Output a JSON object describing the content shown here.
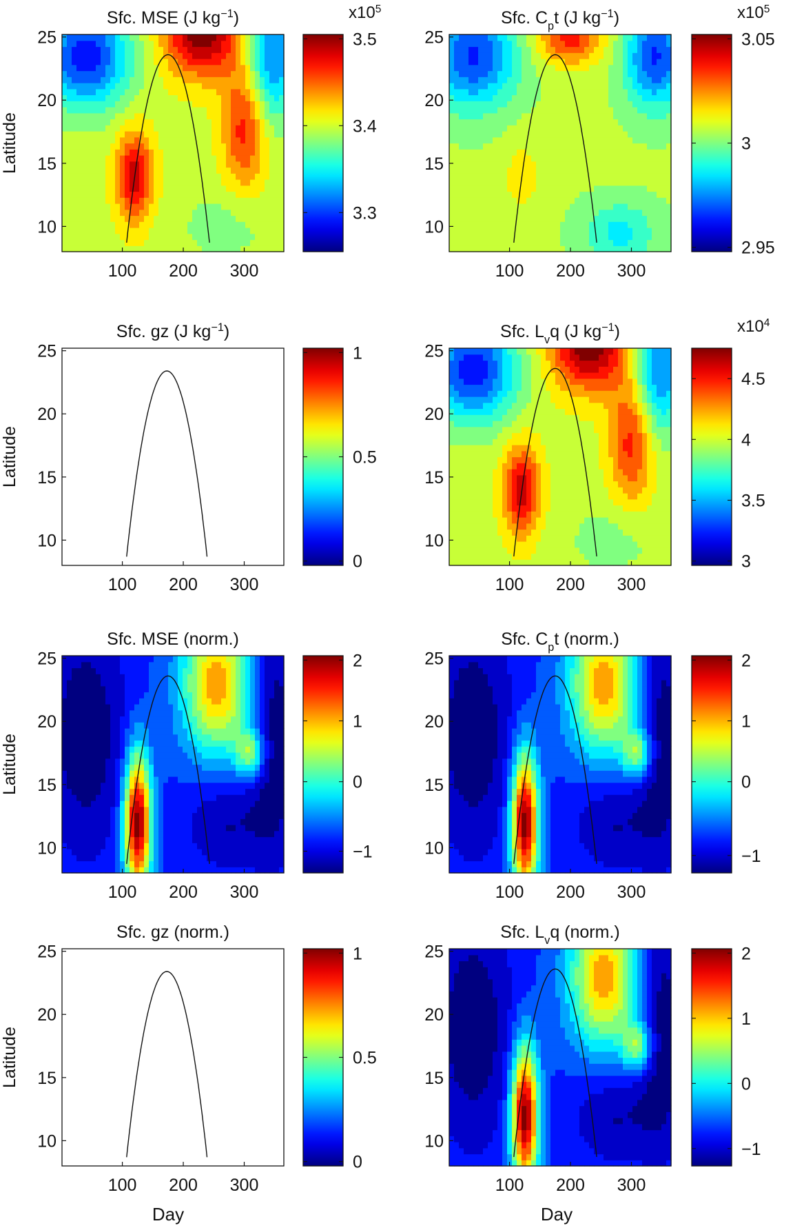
{
  "figure": {
    "xlabel_left": "Day",
    "xlabel_right": "Day"
  },
  "colors": {
    "frame": "#111111",
    "curve": "#111111"
  },
  "colormap_name": "jet",
  "chart_data": [
    {
      "id": "mse",
      "type": "heatmap",
      "title_parts": [
        [
          "Sfc. MSE (J kg",
          ""
        ],
        [
          "−1",
          "sup"
        ],
        [
          ")",
          ""
        ]
      ],
      "ylabel": "Latitude",
      "x_ticks": [
        100,
        200,
        300
      ],
      "y_ticks": [
        10,
        15,
        20,
        25
      ],
      "xlim": [
        1,
        365
      ],
      "ylim": [
        8,
        25.2
      ],
      "field": "full",
      "cbar": {
        "ticks": [
          "3.3",
          "3.4",
          "3.5"
        ],
        "tick_values": [
          0.18,
          0.58,
          0.98
        ],
        "exp_parts": [
          [
            "x10",
            ""
          ],
          [
            "5",
            "sup"
          ]
        ]
      },
      "curve": {
        "peak_day": 175,
        "peak_lat": 23.6,
        "day_at_10": 110,
        "shape": "parabola"
      },
      "empty": false
    },
    {
      "id": "cpt",
      "type": "heatmap",
      "title_parts": [
        [
          "Sfc. C",
          ""
        ],
        [
          "p",
          "sub"
        ],
        [
          "t (J kg",
          ""
        ],
        [
          "−1",
          "sup"
        ],
        [
          ")",
          ""
        ]
      ],
      "ylabel": "",
      "x_ticks": [
        100,
        200,
        300
      ],
      "y_ticks": [
        10,
        15,
        20,
        25
      ],
      "xlim": [
        1,
        365
      ],
      "ylim": [
        8,
        25.2
      ],
      "field": "cpt",
      "cbar": {
        "ticks": [
          "2.95",
          "3",
          "3.05"
        ],
        "tick_values": [
          0.02,
          0.5,
          0.98
        ],
        "exp_parts": [
          [
            "x10",
            ""
          ],
          [
            "5",
            "sup"
          ]
        ]
      },
      "curve": {
        "peak_day": 175,
        "peak_lat": 23.6,
        "day_at_10": 110,
        "shape": "parabola"
      },
      "empty": false
    },
    {
      "id": "gz",
      "type": "heatmap",
      "title_parts": [
        [
          "Sfc. gz (J kg",
          ""
        ],
        [
          "−1",
          "sup"
        ],
        [
          ")",
          ""
        ]
      ],
      "ylabel": "Latitude",
      "x_ticks": [
        100,
        200,
        300
      ],
      "y_ticks": [
        10,
        15,
        20,
        25
      ],
      "xlim": [
        1,
        365
      ],
      "ylim": [
        8,
        25.2
      ],
      "field": "none",
      "cbar": {
        "ticks": [
          "0",
          "0.5",
          "1"
        ],
        "tick_values": [
          0.02,
          0.5,
          0.98
        ],
        "exp_parts": []
      },
      "curve": {
        "peak_day": 173,
        "peak_lat": 23.4,
        "day_at_10": 110,
        "shape": "parabola"
      },
      "empty": true
    },
    {
      "id": "lvq",
      "type": "heatmap",
      "title_parts": [
        [
          "Sfc. L",
          ""
        ],
        [
          "v",
          "sub"
        ],
        [
          "q (J kg",
          ""
        ],
        [
          "−1",
          "sup"
        ],
        [
          ")",
          ""
        ]
      ],
      "ylabel": "",
      "x_ticks": [
        100,
        200,
        300
      ],
      "y_ticks": [
        10,
        15,
        20,
        25
      ],
      "xlim": [
        1,
        365
      ],
      "ylim": [
        8,
        25.2
      ],
      "field": "full",
      "cbar": {
        "ticks": [
          "3",
          "3.5",
          "4",
          "4.5"
        ],
        "tick_values": [
          0.02,
          0.3,
          0.58,
          0.86
        ],
        "exp_parts": [
          [
            "x10",
            ""
          ],
          [
            "4",
            "sup"
          ]
        ]
      },
      "curve": {
        "peak_day": 175,
        "peak_lat": 23.6,
        "day_at_10": 110,
        "shape": "parabola"
      },
      "empty": false
    },
    {
      "id": "mse_n",
      "type": "heatmap",
      "title_parts": [
        [
          "Sfc. MSE (norm.)",
          ""
        ]
      ],
      "ylabel": "Latitude",
      "x_ticks": [
        100,
        200,
        300
      ],
      "y_ticks": [
        10,
        15,
        20,
        25
      ],
      "xlim": [
        1,
        365
      ],
      "ylim": [
        8,
        25.2
      ],
      "field": "norm",
      "cbar": {
        "ticks": [
          "−1",
          "0",
          "1",
          "2"
        ],
        "tick_values": [
          0.1,
          0.42,
          0.7,
          0.98
        ],
        "exp_parts": []
      },
      "curve": {
        "peak_day": 175,
        "peak_lat": 23.6,
        "day_at_10": 110,
        "shape": "parabola"
      },
      "empty": false
    },
    {
      "id": "cpt_n",
      "type": "heatmap",
      "title_parts": [
        [
          "Sfc. C",
          ""
        ],
        [
          "p",
          "sub"
        ],
        [
          "t (norm.)",
          ""
        ]
      ],
      "ylabel": "",
      "x_ticks": [
        100,
        200,
        300
      ],
      "y_ticks": [
        10,
        15,
        20,
        25
      ],
      "xlim": [
        1,
        365
      ],
      "ylim": [
        8,
        25.2
      ],
      "field": "norm",
      "cbar": {
        "ticks": [
          "−1",
          "0",
          "1",
          "2"
        ],
        "tick_values": [
          0.08,
          0.42,
          0.7,
          0.98
        ],
        "exp_parts": []
      },
      "curve": {
        "peak_day": 175,
        "peak_lat": 23.6,
        "day_at_10": 110,
        "shape": "parabola"
      },
      "empty": false
    },
    {
      "id": "gz_n",
      "type": "heatmap",
      "title_parts": [
        [
          "Sfc. gz (norm.)",
          ""
        ]
      ],
      "ylabel": "Latitude",
      "x_ticks": [
        100,
        200,
        300
      ],
      "y_ticks": [
        10,
        15,
        20,
        25
      ],
      "xlim": [
        1,
        365
      ],
      "ylim": [
        8,
        25.2
      ],
      "field": "none",
      "cbar": {
        "ticks": [
          "0",
          "0.5",
          "1"
        ],
        "tick_values": [
          0.02,
          0.5,
          0.98
        ],
        "exp_parts": []
      },
      "curve": {
        "peak_day": 173,
        "peak_lat": 23.4,
        "day_at_10": 110,
        "shape": "parabola"
      },
      "empty": true
    },
    {
      "id": "lvq_n",
      "type": "heatmap",
      "title_parts": [
        [
          "Sfc. L",
          ""
        ],
        [
          "v",
          "sub"
        ],
        [
          "q (norm.)",
          ""
        ]
      ],
      "ylabel": "",
      "x_ticks": [
        100,
        200,
        300
      ],
      "y_ticks": [
        10,
        15,
        20,
        25
      ],
      "xlim": [
        1,
        365
      ],
      "ylim": [
        8,
        25.2
      ],
      "field": "norm",
      "cbar": {
        "ticks": [
          "−1",
          "0",
          "1",
          "2"
        ],
        "tick_values": [
          0.08,
          0.38,
          0.68,
          0.98
        ],
        "exp_parts": []
      },
      "curve": {
        "peak_day": 175,
        "peak_lat": 23.6,
        "day_at_10": 110,
        "shape": "parabola"
      },
      "empty": false
    }
  ]
}
